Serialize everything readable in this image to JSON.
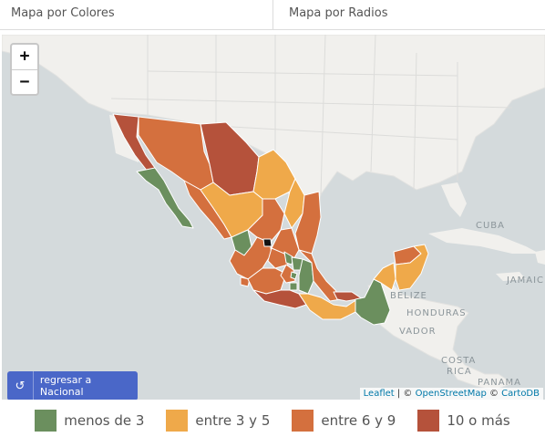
{
  "tabs": [
    {
      "label": "Mapa por Colores"
    },
    {
      "label": "Mapa por Radios"
    }
  ],
  "map": {
    "zoom_in_label": "+",
    "zoom_out_label": "−",
    "place_labels": [
      "CUBA",
      "JAMAIC",
      "BELIZE",
      "HONDURAS",
      "VADOR",
      "COSTA",
      "RICA",
      "PANAMA"
    ],
    "back_button_label": "regresar a Nacional",
    "back_icon": "undo-icon",
    "attribution": {
      "leaflet": "Leaflet",
      "sep": " | © ",
      "osm": "OpenStreetMap",
      "sep2": " © ",
      "carto": "CartoDB"
    }
  },
  "colors": {
    "low": "#6b8f5e",
    "mid_low": "#efa94a",
    "mid_high": "#d4703e",
    "high": "#b5523b",
    "water": "#d4dadc",
    "land": "#f1f0ed"
  },
  "legend": [
    {
      "label": "menos de 3",
      "color": "#6b8f5e"
    },
    {
      "label": "entre 3 y 5",
      "color": "#efa94a"
    },
    {
      "label": "entre 6 y 9",
      "color": "#d4703e"
    },
    {
      "label": "10 o más",
      "color": "#b5523b"
    }
  ]
}
